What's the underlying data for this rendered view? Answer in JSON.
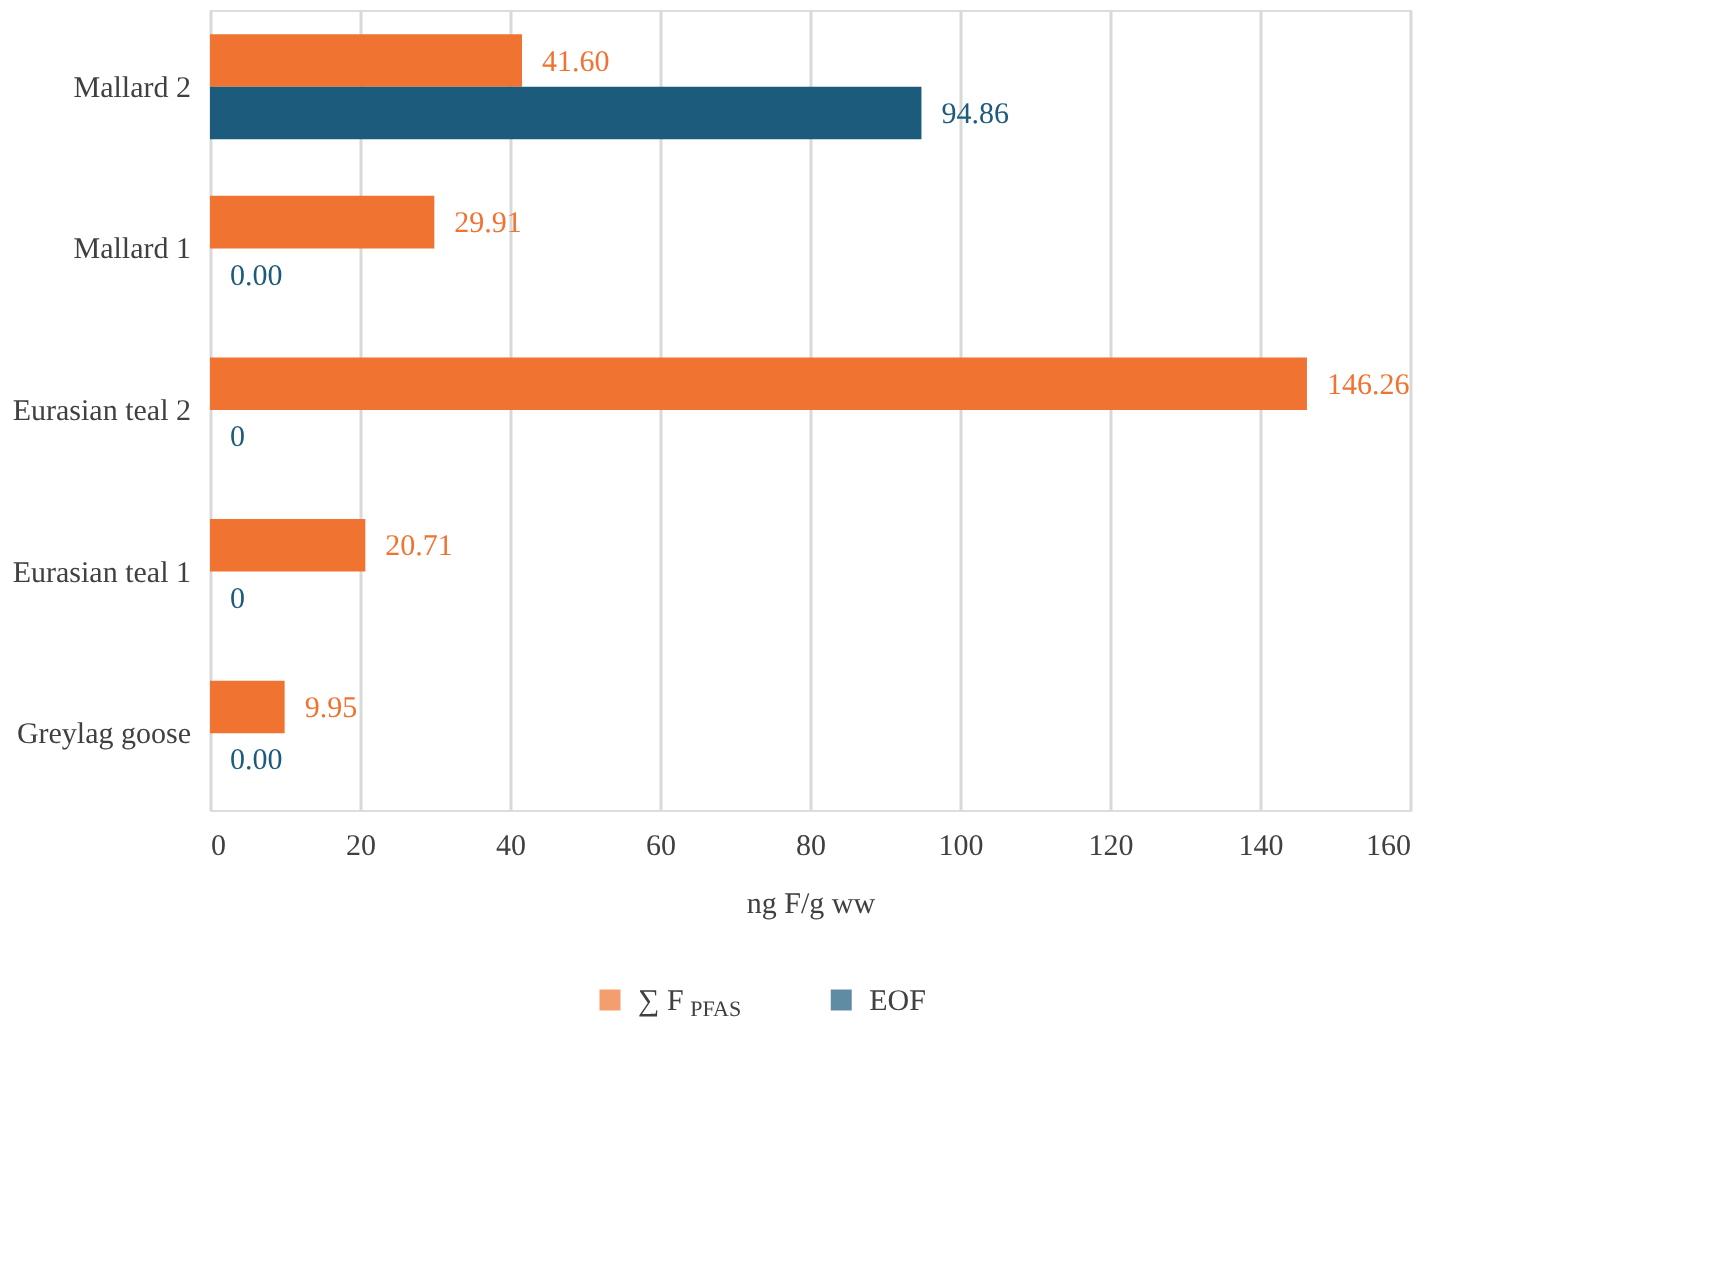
{
  "chart_data": {
    "type": "bar",
    "orientation": "horizontal",
    "xlabel": "ng F/g ww",
    "categories": [
      "Mallard 2",
      "Mallard 1",
      "Eurasian teal 2",
      "Eurasian teal 1",
      "Greylag goose"
    ],
    "series": [
      {
        "name": "∑ F$_{PFAS}$",
        "color": "#f07331",
        "values": [
          41.6,
          29.91,
          146.26,
          20.71,
          9.95
        ],
        "value_labels": [
          "41.60",
          "29.91",
          "146.26",
          "20.71",
          "9.95"
        ]
      },
      {
        "name": "EOF",
        "color": "#1c5b7c",
        "values": [
          94.86,
          0.0,
          0,
          0,
          0.0
        ],
        "value_labels": [
          "94.86",
          "0.00",
          "0",
          "0",
          "0.00"
        ]
      }
    ],
    "xlim": [
      0,
      160
    ],
    "xticks": [
      0,
      20,
      40,
      60,
      80,
      100,
      120,
      140,
      160
    ],
    "grid": "x",
    "legend": "bottom"
  }
}
